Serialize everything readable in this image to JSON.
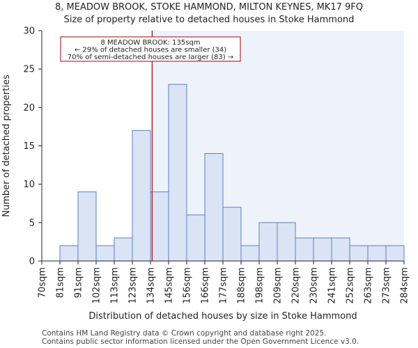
{
  "titles": {
    "line1": "8, MEADOW BROOK, STOKE HAMMOND, MILTON KEYNES, MK17 9FQ",
    "line2": "Size of property relative to detached houses in Stoke Hammond"
  },
  "footer": {
    "line1": "Contains HM Land Registry data © Crown copyright and database right 2025.",
    "line2": "Contains public sector information licensed under the Open Government Licence v3.0."
  },
  "chart_data": {
    "type": "bar",
    "xlabel": "Distribution of detached houses by size in Stoke Hammond",
    "ylabel": "Number of detached properties",
    "ylim": [
      0,
      30
    ],
    "yticks": [
      0,
      5,
      10,
      15,
      20,
      25,
      30
    ],
    "bin_edges": [
      "70sqm",
      "81sqm",
      "91sqm",
      "102sqm",
      "113sqm",
      "123sqm",
      "134sqm",
      "145sqm",
      "156sqm",
      "166sqm",
      "177sqm",
      "188sqm",
      "198sqm",
      "209sqm",
      "220sqm",
      "230sqm",
      "241sqm",
      "252sqm",
      "263sqm",
      "273sqm",
      "284sqm"
    ],
    "values": [
      0,
      2,
      9,
      2,
      3,
      17,
      9,
      23,
      6,
      14,
      7,
      2,
      5,
      5,
      3,
      3,
      3,
      2,
      2,
      2
    ],
    "property_marker": {
      "value_sqm": 135,
      "label_line1": "8 MEADOW BROOK: 135sqm",
      "label_line2": "← 29% of detached houses are smaller (34)",
      "label_line3": "70% of semi-detached houses are larger (83) →"
    },
    "colors": {
      "bar_fill": "#dae4f5",
      "bar_stroke": "#5b7fc4",
      "marker": "#aa0000",
      "shade": "#eef3fb"
    }
  }
}
